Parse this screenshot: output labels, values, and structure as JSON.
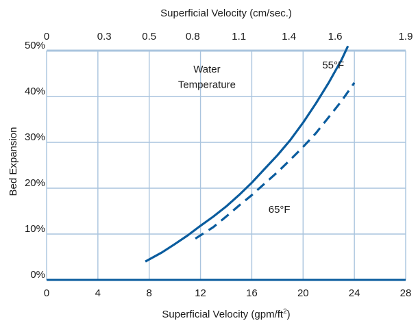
{
  "chart_data": {
    "type": "line",
    "xlabel_bottom": "Superficial Velocity (gpm/ft",
    "xlabel_bottom_sup": "2",
    "xlabel_bottom_suffix": ")",
    "xlabel_top": "Superficial Velocity (cm/sec.)",
    "ylabel": "Bed Expansion",
    "x_ticks_bottom": [
      0,
      4,
      8,
      12,
      16,
      20,
      24,
      28
    ],
    "x_tick_labels_bottom": [
      "0",
      "4",
      "8",
      "12",
      "16",
      "20",
      "24",
      "28"
    ],
    "x_ticks_top": [
      0,
      4.5,
      8,
      11.4,
      15,
      18.9,
      22.5,
      28
    ],
    "x_tick_labels_top": [
      "0",
      "0.3",
      "0.5",
      "0.8",
      "1.1",
      "1.4",
      "1.6",
      "1.9"
    ],
    "y_ticks": [
      0,
      10,
      20,
      30,
      40,
      50
    ],
    "y_tick_labels": [
      "0%",
      "10%",
      "20%",
      "30%",
      "40%",
      "50%"
    ],
    "xlim": [
      0,
      28
    ],
    "ylim": [
      0,
      50
    ],
    "grid": true,
    "annotations": [
      {
        "label": "Water",
        "x": 12.5,
        "y": 46
      },
      {
        "label": "Temperature",
        "x": 12.5,
        "y": 42.6
      }
    ],
    "series": [
      {
        "name": "55°F",
        "style": "solid",
        "color": "#0a5c9e",
        "label_pos": {
          "x": 21.5,
          "y": 47
        },
        "x": [
          7.7,
          9,
          10,
          11,
          12,
          13,
          14,
          15,
          16,
          17,
          18,
          19,
          20,
          21,
          22,
          23,
          23.5
        ],
        "y": [
          4,
          6,
          7.8,
          9.7,
          11.8,
          13.8,
          16,
          18.5,
          21.2,
          24.2,
          27.2,
          30.5,
          34.3,
          38.5,
          43,
          48,
          51
        ]
      },
      {
        "name": "65°F",
        "style": "dashed",
        "color": "#0a5c9e",
        "label_pos": {
          "x": 17.3,
          "y": 15.5
        },
        "x": [
          11.6,
          13,
          14,
          15,
          16,
          17,
          18,
          19,
          20,
          21,
          22,
          23,
          24
        ],
        "y": [
          9,
          11.5,
          13.8,
          16.2,
          18.5,
          21,
          23.5,
          26.2,
          29,
          32,
          35.5,
          39,
          43
        ]
      }
    ]
  }
}
